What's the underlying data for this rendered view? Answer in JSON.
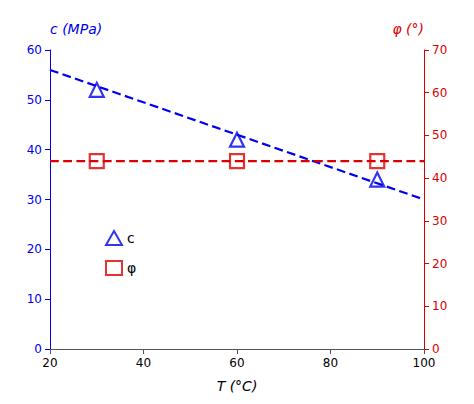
{
  "chart_data": {
    "type": "scatter",
    "xlabel": "T (°C)",
    "ylabel": "c (MPa)",
    "y2label": "φ (°)",
    "xlim": [
      20,
      100
    ],
    "xticks": [
      20,
      40,
      60,
      80,
      100
    ],
    "ylim": [
      0,
      60
    ],
    "yticks": [
      0,
      10,
      20,
      30,
      40,
      50,
      60
    ],
    "y2lim": [
      0,
      70
    ],
    "y2ticks": [
      0,
      10,
      20,
      30,
      40,
      50,
      60,
      70
    ],
    "grid": false,
    "legend": "left",
    "series": [
      {
        "name": "c",
        "type": "scatter",
        "marker": "triangle",
        "color": "#0000EE",
        "x": [
          30,
          60,
          90
        ],
        "values": [
          52,
          42,
          34
        ]
      },
      {
        "type": "line",
        "line_style": "dashed",
        "color": "#0000EE",
        "x": [
          20,
          100
        ],
        "values": [
          56,
          30
        ]
      },
      {
        "name": "φ",
        "type": "scatter",
        "marker": "square",
        "color": "#DD0000",
        "axis": "y2",
        "x": [
          30,
          60,
          90
        ],
        "values": [
          44,
          44,
          44
        ]
      },
      {
        "type": "line",
        "line_style": "dashed",
        "color": "#DD0000",
        "axis": "y2",
        "x": [
          20,
          100
        ],
        "values": [
          44,
          44
        ]
      }
    ]
  }
}
